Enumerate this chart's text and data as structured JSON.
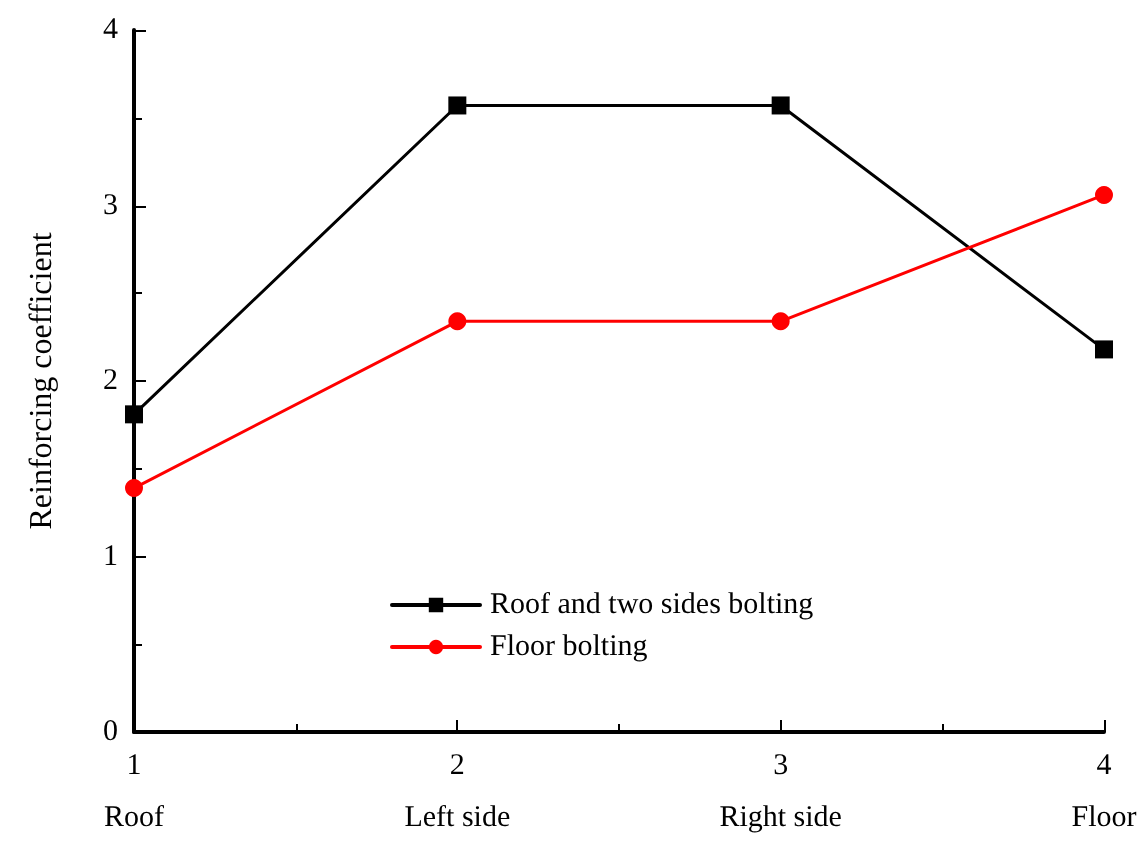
{
  "chart_data": {
    "type": "line",
    "ylabel": "Reinforcing coefficient",
    "categories": [
      "1\nRoof",
      "2\nLeft side",
      "3\nRight side",
      "4\nFloor"
    ],
    "ylim": [
      0,
      4
    ],
    "yticks": [
      0,
      1,
      2,
      3,
      4
    ],
    "series": [
      {
        "name": "Roof and two sides bolting",
        "color": "#000000",
        "marker": "square",
        "values": [
          1.81,
          3.57,
          3.57,
          2.18
        ]
      },
      {
        "name": "Floor bolting",
        "color": "#ff0000",
        "marker": "circle",
        "values": [
          1.39,
          2.34,
          2.34,
          3.06
        ]
      }
    ],
    "grid": false,
    "legend": "bottom",
    "line_style": "solid"
  }
}
